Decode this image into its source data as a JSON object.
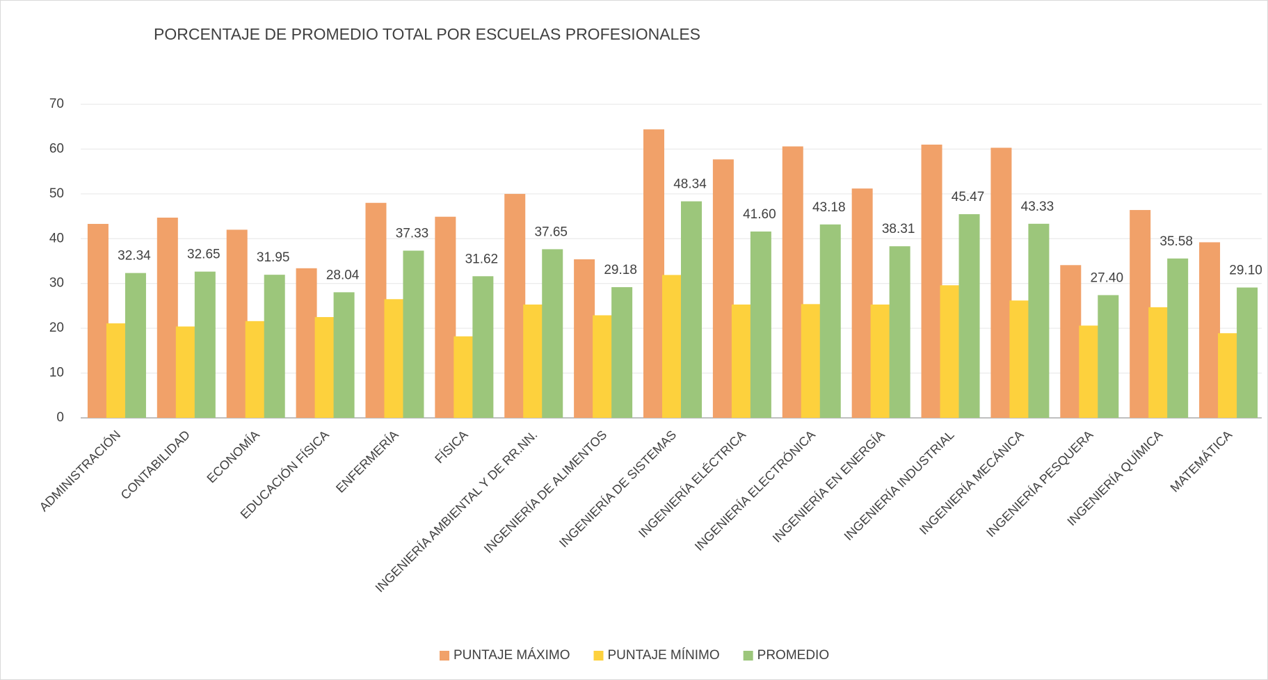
{
  "chart_data": {
    "type": "bar",
    "title": "PORCENTAJE DE PROMEDIO TOTAL POR ESCUELAS PROFESIONALES",
    "categories": [
      "ADMINISTRACIÓN",
      "CONTABILIDAD",
      "ECONOMÍA",
      "EDUCACIÓN FÍSICA",
      "ENFERMERÍA",
      "FÍSICA",
      "INGENIERÍA AMBIENTAL Y DE RR.NN.",
      "INGENIERÍA DE ALIMENTOS",
      "INGENIERÍA DE SISTEMAS",
      "INGENIERÍA ELÉCTRICA",
      "INGENIERÍA ELECTRÓNICA",
      "INGENIERÍA EN ENERGÍA",
      "INGENIERÍA INDUSTRIAL",
      "INGENIERÍA MECÁNICA",
      "INGENIERÍA PESQUERA",
      "INGENIERÍA QUÍMICA",
      "MATEMÁTICA"
    ],
    "series": [
      {
        "name": "PUNTAJE MÁXIMO",
        "color": "#f1a169",
        "values": [
          43.3,
          44.7,
          42.0,
          33.4,
          48.0,
          44.9,
          50.0,
          35.4,
          64.4,
          57.7,
          60.6,
          51.2,
          61.0,
          60.3,
          34.1,
          46.4,
          39.2
        ]
      },
      {
        "name": "PUNTAJE MÍNIMO",
        "color": "#fdd13d",
        "values": [
          21.1,
          20.4,
          21.6,
          22.5,
          26.5,
          18.2,
          25.3,
          22.9,
          31.9,
          25.3,
          25.4,
          25.3,
          29.6,
          26.2,
          20.6,
          24.7,
          18.9
        ]
      },
      {
        "name": "PROMEDIO",
        "color": "#9cc67b",
        "values": [
          32.34,
          32.65,
          31.95,
          28.04,
          37.33,
          31.62,
          37.65,
          29.18,
          48.34,
          41.6,
          43.18,
          38.31,
          45.47,
          43.33,
          27.4,
          35.58,
          29.1
        ],
        "value_labels": [
          "32.34",
          "32.65",
          "31.95",
          "28.04",
          "37.33",
          "31.62",
          "37.65",
          "29.18",
          "48.34",
          "41.60",
          "43.18",
          "38.31",
          "45.47",
          "43.33",
          "27.40",
          "35.58",
          "29.10"
        ]
      }
    ],
    "ylim": [
      0,
      70
    ],
    "yticks": [
      0,
      10,
      20,
      30,
      40,
      50,
      60,
      70
    ],
    "grid": true,
    "legend": "bottom"
  }
}
